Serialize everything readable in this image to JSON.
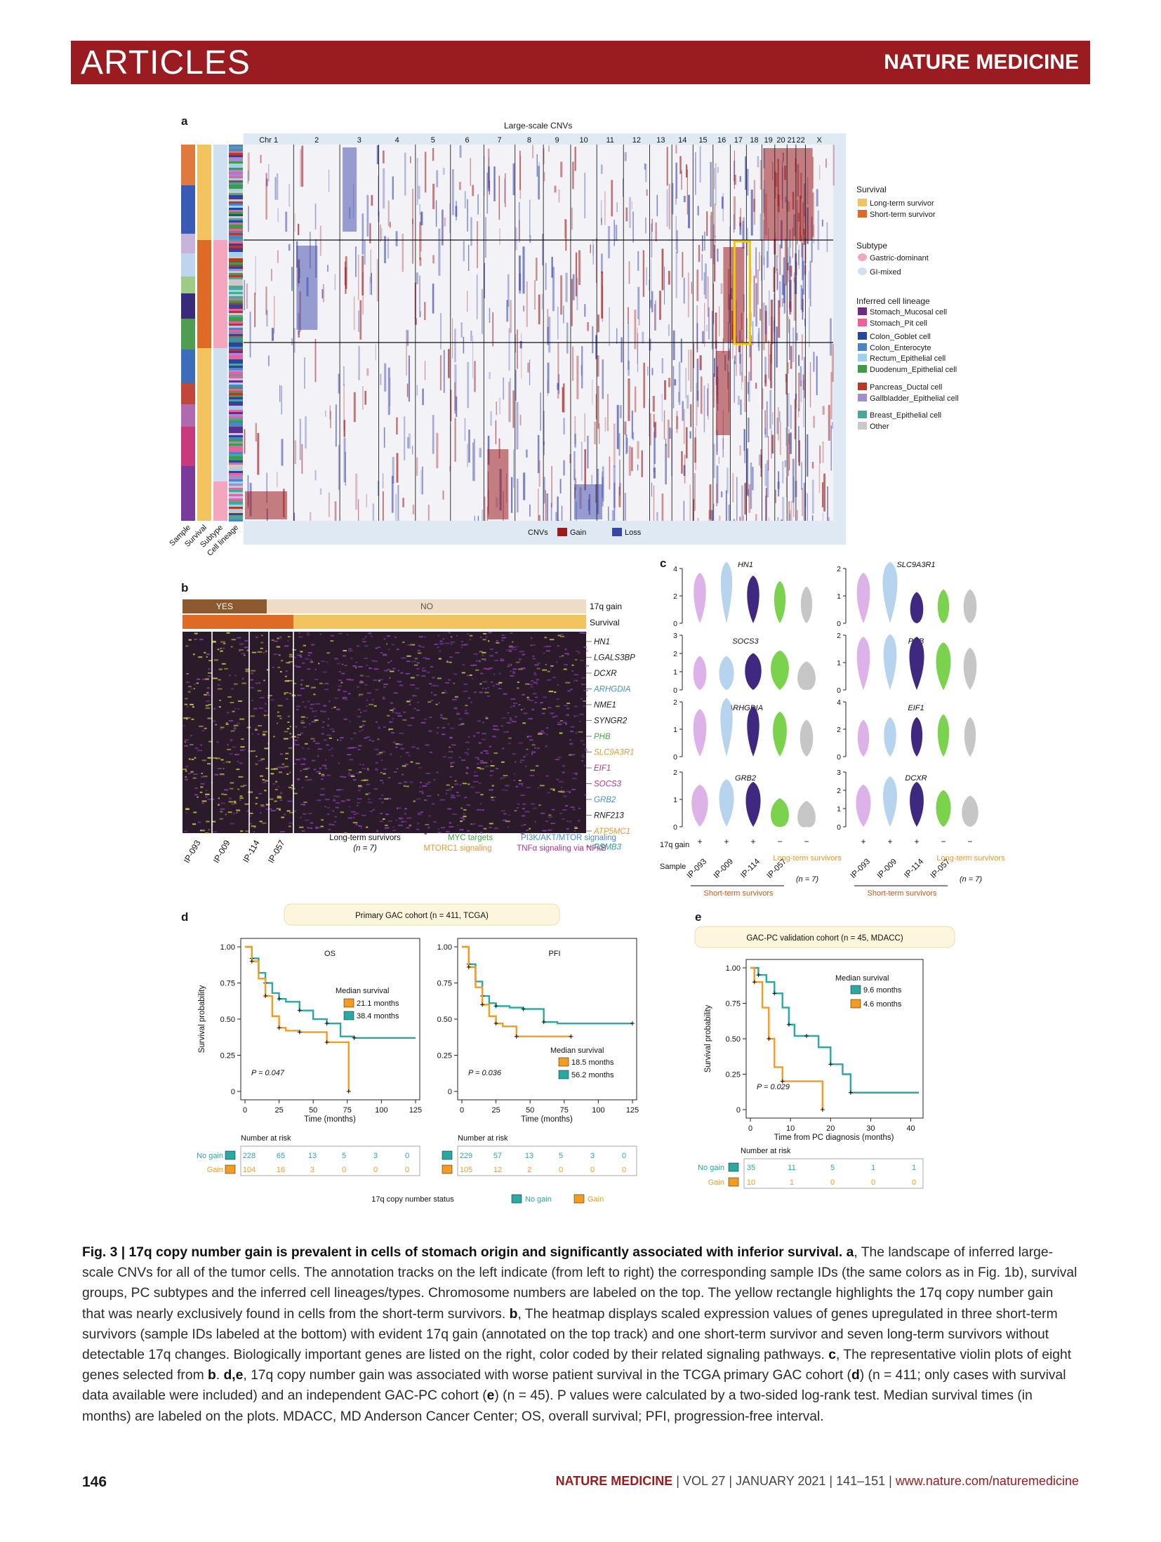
{
  "header": {
    "section": "ARTICLES",
    "journal": "NATURE MEDICINE"
  },
  "panel_labels": {
    "a": "a",
    "b": "b",
    "c": "c",
    "d": "d",
    "e": "e"
  },
  "panel_a": {
    "title": "Large-scale CNVs",
    "chromosomes": [
      "Chr 1",
      "2",
      "3",
      "4",
      "5",
      "6",
      "7",
      "8",
      "9",
      "10",
      "11",
      "12",
      "13",
      "14",
      "15",
      "16",
      "17",
      "18",
      "19",
      "20",
      "21",
      "22",
      "X"
    ],
    "track_labels": [
      "Sample",
      "Survival",
      "Subtype",
      "Cell lineage"
    ],
    "cnv_legend": {
      "title": "CNVs",
      "gain": "Gain",
      "loss": "Loss"
    },
    "legend": {
      "survival_title": "Survival",
      "survival": [
        {
          "label": "Long-term survivor",
          "color": "#f2c35e"
        },
        {
          "label": "Short-term survivor",
          "color": "#de6a26"
        }
      ],
      "subtype_title": "Subtype",
      "subtype": [
        {
          "label": "Gastric-dominant",
          "color": "#f3a6bd"
        },
        {
          "label": "GI-mixed",
          "color": "#cfe0f2"
        }
      ],
      "lineage_title": "Inferred cell lineage",
      "lineage": [
        {
          "label": "Stomach_Mucosal cell",
          "color": "#6d2b86"
        },
        {
          "label": "Stomach_Pit cell",
          "color": "#e9629b"
        },
        {
          "label": "Colon_Goblet cell",
          "color": "#27479d"
        },
        {
          "label": "Colon_Enterocyte",
          "color": "#4a86c5"
        },
        {
          "label": "Rectum_Epithelial cell",
          "color": "#9fd1ec"
        },
        {
          "label": "Duodenum_Epithelial cell",
          "color": "#3f9b48"
        },
        {
          "label": "Pancreas_Ductal cell",
          "color": "#b33b27"
        },
        {
          "label": "Gallbladder_Epithelial cell",
          "color": "#a28bd0"
        },
        {
          "label": "Breast_Epithelial cell",
          "color": "#4aa796"
        },
        {
          "label": "Other",
          "color": "#c9c9c9"
        }
      ]
    },
    "colors": {
      "gain": "#9b1b1f",
      "loss": "#3a45a8",
      "highlight": "#f2c600"
    }
  },
  "panel_b": {
    "top_track": {
      "yes": "YES",
      "no": "NO",
      "label": "17q gain"
    },
    "survival_label": "Survival",
    "genes": [
      {
        "name": "HN1",
        "color": "#1a1a1a"
      },
      {
        "name": "LGALS3BP",
        "color": "#1a1a1a"
      },
      {
        "name": "DCXR",
        "color": "#1a1a1a"
      },
      {
        "name": "ARHGDIA",
        "color": "#4a8fc7"
      },
      {
        "name": "NME1",
        "color": "#1a1a1a"
      },
      {
        "name": "SYNGR2",
        "color": "#1a1a1a"
      },
      {
        "name": "PHB",
        "color": "#46a64a"
      },
      {
        "name": "SLC9A3R1",
        "color": "#e59a2c"
      },
      {
        "name": "EIF1",
        "color": "#b0338f"
      },
      {
        "name": "SOCS3",
        "color": "#b0338f"
      },
      {
        "name": "GRB2",
        "color": "#4a8fc7"
      },
      {
        "name": "RNF213",
        "color": "#1a1a1a"
      },
      {
        "name": "ATP5MC1",
        "color": "#e59a2c"
      },
      {
        "name": "PSMB3",
        "color": "#2a9f92"
      }
    ],
    "samples": [
      "IP-093",
      "IP-009",
      "IP-114",
      "IP-057"
    ],
    "long_term": {
      "label": "Long-term survivors",
      "n": "(n = 7)"
    },
    "pathways": [
      {
        "label": "MYC targets",
        "color": "#46a64a"
      },
      {
        "label": "MTORC1 signaling",
        "color": "#e59a2c"
      },
      {
        "label": "PI3K/AKT/MTOR signaling",
        "color": "#4a8fc7"
      },
      {
        "label": "TNFα signaling via NFκB",
        "color": "#b0338f"
      }
    ]
  },
  "panel_c": {
    "genes": [
      "HN1",
      "SLC9A3R1",
      "SOCS3",
      "PHB",
      "ARHGDIA",
      "EIF1",
      "GRB2",
      "DCXR"
    ],
    "row_label": "17q gain",
    "sample_label": "Sample",
    "gain_marks": [
      "+",
      "+",
      "+",
      "−",
      "−"
    ],
    "samples": [
      "IP-093",
      "IP-009",
      "IP-114",
      "IP-057"
    ],
    "long_term": "Long-term survivors",
    "long_term_n": "(n = 7)",
    "short_term": "Short-term survivors",
    "group_colors": [
      "#dcb2e8",
      "#b7d4ee",
      "#3e2880",
      "#7bd34d",
      "#c6c6c6"
    ]
  },
  "panel_d": {
    "cohort": "Primary GAC cohort (n = 411, TCGA)",
    "ylabel": "Survival probability",
    "xlabel": "Time (months)",
    "os": {
      "title": "OS",
      "median_title": "Median survival",
      "gain": "21.1 months",
      "nogain": "38.4 months",
      "p": "P = 0.047"
    },
    "pfi": {
      "title": "PFI",
      "median_title": "Median survival",
      "gain": "18.5 months",
      "nogain": "56.2 months",
      "p": "P = 0.036"
    },
    "yticks": [
      "0",
      "0.25",
      "0.50",
      "0.75",
      "1.00"
    ],
    "xticks": [
      "0",
      "25",
      "50",
      "75",
      "100",
      "125"
    ],
    "risk_title": "Number at risk",
    "risk_labels": {
      "nogain": "No gain",
      "gain": "Gain"
    },
    "os_risk": {
      "nogain": [
        "228",
        "65",
        "13",
        "5",
        "3",
        "0"
      ],
      "gain": [
        "104",
        "16",
        "3",
        "0",
        "0",
        "0"
      ]
    },
    "pfi_risk": {
      "nogain": [
        "229",
        "57",
        "13",
        "5",
        "3",
        "0"
      ],
      "gain": [
        "105",
        "12",
        "2",
        "0",
        "0",
        "0"
      ]
    },
    "status_title": "17q copy number status",
    "status_nogain": "No gain",
    "status_gain": "Gain",
    "colors": {
      "gain": "#f39c1f",
      "nogain": "#2aa8a4"
    }
  },
  "panel_e": {
    "cohort": "GAC-PC validation cohort (n = 45, MDACC)",
    "ylabel": "Survival probability",
    "xlabel": "Time from PC diagnosis (months)",
    "median_title": "Median survival",
    "nogain": "9.6 months",
    "gain": "4.6 months",
    "p": "P = 0.029",
    "yticks": [
      "0",
      "0.25",
      "0.50",
      "0.75",
      "1.00"
    ],
    "xticks": [
      "0",
      "10",
      "20",
      "30",
      "40"
    ],
    "risk_title": "Number at risk",
    "risk": {
      "nogain": [
        "35",
        "11",
        "5",
        "1",
        "1"
      ],
      "gain": [
        "10",
        "1",
        "0",
        "0",
        "0"
      ]
    }
  },
  "caption": {
    "title": "Fig. 3 | 17q copy number gain is prevalent in cells of stomach origin and significantly associated with inferior survival.",
    "a_label": "a",
    "a_text": ", The landscape of inferred large-scale CNVs for all of the tumor cells. The annotation tracks on the left indicate (from left to right) the corresponding sample IDs (the same colors as in Fig. 1b), survival groups, PC subtypes and the inferred cell lineages/types. Chromosome numbers are labeled on the top. The yellow rectangle highlights the 17q copy number gain that was nearly exclusively found in cells from the short-term survivors.",
    "b_label": "b",
    "b_text": ", The heatmap displays scaled expression values of genes upregulated in three short-term survivors (sample IDs labeled at the bottom) with evident 17q gain (annotated on the top track) and one short-term survivor and seven long-term survivors without detectable 17q changes. Biologically important genes are listed on the right, color coded by their related signaling pathways.",
    "c_label": "c",
    "c_text": ", The representative violin plots of eight genes selected from",
    "c_ref": "b",
    "de_label": "d,e",
    "de_text": ", 17q copy number gain was associated with worse patient survival in the TCGA primary GAC cohort (",
    "d_ref": "d",
    "d_n": ") (n = 411; only cases with survival data available were included) and an independent GAC-PC cohort (",
    "e_ref": "e",
    "e_n": ") (n = 45).",
    "rest": "P values were calculated by a two-sided log-rank test. Median survival times (in months) are labeled on the plots. MDACC, MD Anderson Cancer Center; OS, overall survival; PFI, progression-free interval."
  },
  "footer": {
    "page": "146",
    "journal": "NATURE MEDICINE",
    "issue": " | VOL 27 | JANUARY 2021 | 141–151 | ",
    "url": "www.nature.com/naturemedicine"
  }
}
